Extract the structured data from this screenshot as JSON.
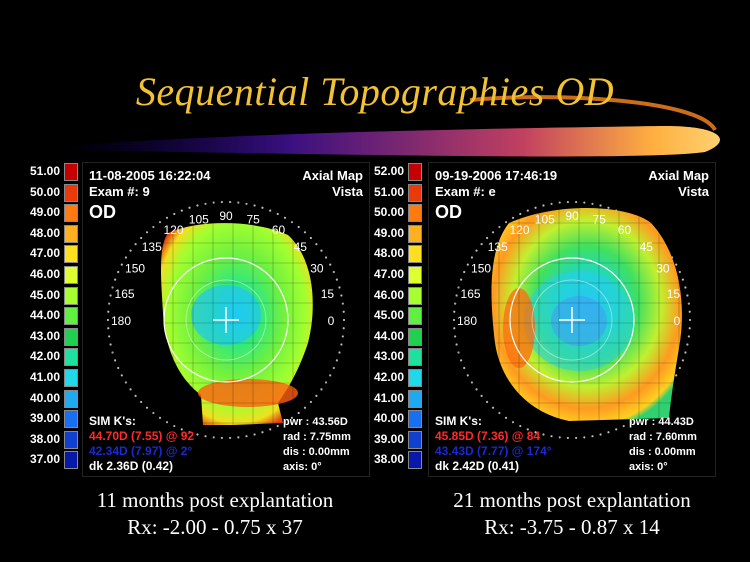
{
  "slide": {
    "title": "Sequential Topographies OD",
    "colors": {
      "title": "#f2c232",
      "background": "#000000",
      "overlay_text": "#000000",
      "sim_k_red": "#ff2a2a",
      "sim_k_blue": "#1a2ad0"
    }
  },
  "maps": [
    {
      "scale": [
        {
          "value": "51.00",
          "color": "#c40000"
        },
        {
          "value": "50.00",
          "color": "#e83a0a"
        },
        {
          "value": "49.00",
          "color": "#ff7a10"
        },
        {
          "value": "48.00",
          "color": "#ffb020"
        },
        {
          "value": "47.00",
          "color": "#ffe020"
        },
        {
          "value": "46.00",
          "color": "#e0ff30"
        },
        {
          "value": "45.00",
          "color": "#a8ff30"
        },
        {
          "value": "44.00",
          "color": "#60f040"
        },
        {
          "value": "43.00",
          "color": "#20d050"
        },
        {
          "value": "42.00",
          "color": "#20e0a0"
        },
        {
          "value": "41.00",
          "color": "#20d8e8"
        },
        {
          "value": "40.00",
          "color": "#20a8f0"
        },
        {
          "value": "39.00",
          "color": "#1870f0"
        },
        {
          "value": "38.00",
          "color": "#1040d0"
        },
        {
          "value": "37.00",
          "color": "#0818a8"
        }
      ],
      "date": "11-08-2005 16:22:04",
      "exam": "Exam #: 9",
      "eye": "OD",
      "map_type": "Axial Map",
      "device": "Vista",
      "sim_k_label": "SIM K's:",
      "k1": "44.70D (7.55) @ 92",
      "k2": "42.34D (7.97) @   2°",
      "dk": "dk  2.36D (0.42)",
      "pwr": "pwr : 43.56D",
      "rad": "rad : 7.75mm",
      "dis": "dis : 0.00mm",
      "axis": "axis:  0°",
      "caption_line1": "11 months post explantation",
      "caption_line2": "Rx: -2.00 - 0.75 x 37"
    },
    {
      "scale": [
        {
          "value": "52.00",
          "color": "#c40000"
        },
        {
          "value": "51.00",
          "color": "#e83a0a"
        },
        {
          "value": "50.00",
          "color": "#ff7a10"
        },
        {
          "value": "49.00",
          "color": "#ffb020"
        },
        {
          "value": "48.00",
          "color": "#ffe020"
        },
        {
          "value": "47.00",
          "color": "#e0ff30"
        },
        {
          "value": "46.00",
          "color": "#a8ff30"
        },
        {
          "value": "45.00",
          "color": "#60f040"
        },
        {
          "value": "44.00",
          "color": "#20d050"
        },
        {
          "value": "43.00",
          "color": "#20e0a0"
        },
        {
          "value": "42.00",
          "color": "#20d8e8"
        },
        {
          "value": "41.00",
          "color": "#20a8f0"
        },
        {
          "value": "40.00",
          "color": "#1870f0"
        },
        {
          "value": "39.00",
          "color": "#1040d0"
        },
        {
          "value": "38.00",
          "color": "#0818a8"
        }
      ],
      "date": "09-19-2006 17:46:19",
      "exam": "Exam #: e",
      "eye": "OD",
      "map_type": "Axial Map",
      "device": "Vista",
      "sim_k_label": "SIM K's:",
      "k1": "45.85D (7.36) @  84",
      "k2": "43.43D (7.77) @ 174°",
      "dk": "dk  2.42D (0.41)",
      "pwr": "pwr : 44.43D",
      "rad": "rad : 7.60mm",
      "dis": "dis : 0.00mm",
      "axis": "axis:  0°",
      "caption_line1": "21 months post explantation",
      "caption_line2": "Rx: -3.75 - 0.87 x 14"
    }
  ],
  "angles": [
    "180",
    "165",
    "150",
    "135",
    "120",
    "105",
    "90",
    "75",
    "60",
    "45",
    "30",
    "15",
    "0"
  ]
}
